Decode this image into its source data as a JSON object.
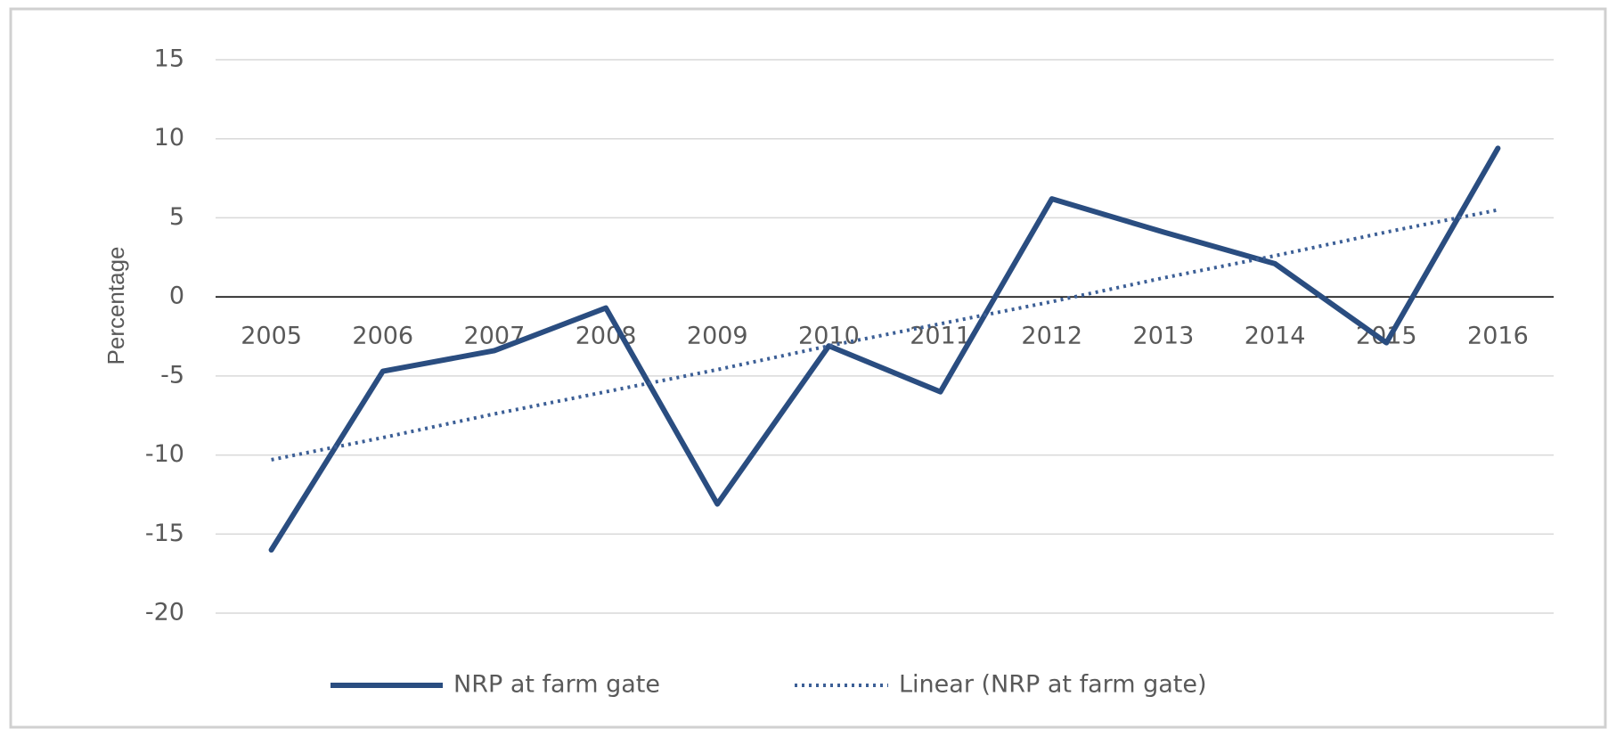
{
  "chart_data": {
    "type": "line",
    "y_label": "Percentage",
    "categories": [
      "2005",
      "2006",
      "2007",
      "2008",
      "2009",
      "2010",
      "2011",
      "2012",
      "2013",
      "2014",
      "2015",
      "2016"
    ],
    "series": [
      {
        "name": "NRP at farm gate",
        "color": "#2a4d80",
        "style": "solid",
        "values": [
          -16.0,
          -4.7,
          -3.4,
          -0.7,
          -13.1,
          -3.1,
          -6.0,
          6.2,
          4.1,
          2.1,
          -2.9,
          9.4
        ]
      },
      {
        "name": "Linear (NRP at farm gate)",
        "color": "#3c5f96",
        "style": "dotted",
        "values": [
          -10.3,
          -8.9,
          -7.4,
          -6.0,
          -4.6,
          -3.1,
          -1.7,
          -0.3,
          1.2,
          2.6,
          4.1,
          5.5
        ]
      }
    ],
    "ylim": [
      -20,
      15
    ],
    "yticks": [
      -20,
      -15,
      -10,
      -5,
      0,
      5,
      10,
      15
    ],
    "grid": true
  }
}
